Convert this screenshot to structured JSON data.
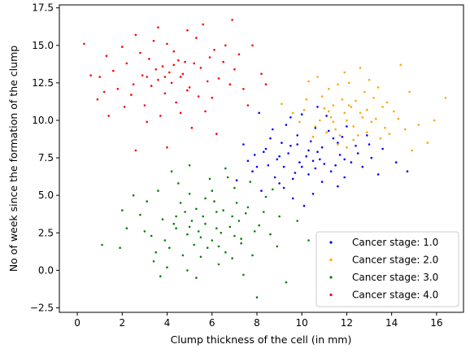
{
  "chart_data": {
    "type": "scatter",
    "title": "",
    "xlabel": "Clump thickness of the cell (in mm)",
    "ylabel": "No of week since the formation of the clump",
    "xlim": [
      -0.8,
      17.2
    ],
    "ylim": [
      -2.8,
      17.7
    ],
    "xticks": [
      0,
      2,
      4,
      6,
      8,
      10,
      12,
      14,
      16
    ],
    "yticks": [
      -2.5,
      0.0,
      2.5,
      5.0,
      7.5,
      10.0,
      12.5,
      15.0,
      17.5
    ],
    "xtick_labels": [
      "0",
      "2",
      "4",
      "6",
      "8",
      "10",
      "12",
      "14",
      "16"
    ],
    "ytick_labels": [
      "−2.5",
      "0.0",
      "2.5",
      "5.0",
      "7.5",
      "10.0",
      "12.5",
      "15.0",
      "17.5"
    ],
    "grid": false,
    "legend_position": "lower right",
    "series": [
      {
        "name": "Cancer stage: 1.0",
        "color": "#0000ff",
        "points": [
          [
            10.2,
            7.6
          ],
          [
            9.5,
            8.3
          ],
          [
            11.0,
            7.1
          ],
          [
            10.6,
            6.8
          ],
          [
            9.8,
            9.0
          ],
          [
            10.9,
            8.2
          ],
          [
            8.9,
            7.4
          ],
          [
            10.3,
            6.4
          ],
          [
            11.4,
            8.8
          ],
          [
            9.2,
            6.9
          ],
          [
            10.0,
            10.4
          ],
          [
            8.3,
            7.9
          ],
          [
            12.4,
            8.3
          ],
          [
            7.8,
            6.6
          ],
          [
            9.6,
            4.8
          ],
          [
            11.6,
            5.6
          ],
          [
            13.1,
            7.5
          ],
          [
            8.1,
            10.5
          ],
          [
            10.7,
            10.9
          ],
          [
            9.0,
            5.8
          ],
          [
            12.0,
            9.6
          ],
          [
            7.4,
            8.4
          ],
          [
            11.9,
            6.2
          ],
          [
            10.5,
            5.1
          ],
          [
            9.3,
            9.7
          ],
          [
            8.6,
            8.8
          ],
          [
            13.6,
            8.1
          ],
          [
            14.7,
            6.6
          ],
          [
            7.1,
            6.0
          ],
          [
            10.1,
            4.3
          ],
          [
            11.2,
            9.3
          ],
          [
            9.9,
            7.2
          ],
          [
            10.4,
            8.6
          ],
          [
            8.8,
            6.2
          ],
          [
            12.7,
            6.9
          ],
          [
            11.7,
            7.7
          ],
          [
            9.4,
            7.8
          ],
          [
            10.8,
            7.4
          ],
          [
            12.2,
            7.2
          ],
          [
            8.5,
            7.0
          ],
          [
            9.7,
            6.5
          ],
          [
            11.3,
            6.6
          ],
          [
            10.6,
            9.5
          ],
          [
            9.1,
            8.5
          ],
          [
            11.8,
            8.9
          ],
          [
            7.6,
            7.3
          ],
          [
            13.4,
            6.4
          ],
          [
            8.2,
            5.3
          ],
          [
            10.9,
            5.9
          ],
          [
            12.9,
            9.0
          ],
          [
            9.5,
            10.2
          ],
          [
            11.1,
            10.3
          ],
          [
            8.7,
            9.4
          ],
          [
            14.2,
            7.2
          ],
          [
            7.9,
            7.7
          ],
          [
            10.3,
            8.0
          ],
          [
            9.6,
            6.1
          ],
          [
            11.5,
            7.0
          ],
          [
            10.0,
            6.9
          ],
          [
            8.4,
            8.1
          ],
          [
            12.5,
            7.8
          ],
          [
            9.2,
            5.5
          ],
          [
            10.7,
            7.9
          ],
          [
            11.6,
            8.5
          ],
          [
            9.8,
            8.4
          ],
          [
            8.0,
            6.9
          ],
          [
            13.0,
            8.4
          ],
          [
            10.5,
            7.3
          ],
          [
            9.0,
            7.6
          ],
          [
            11.9,
            7.4
          ]
        ]
      },
      {
        "name": "Cancer stage: 2.0",
        "color": "#ffa500",
        "points": [
          [
            12.0,
            10.0
          ],
          [
            11.5,
            9.4
          ],
          [
            12.6,
            10.5
          ],
          [
            11.0,
            10.8
          ],
          [
            12.9,
            9.2
          ],
          [
            11.8,
            11.4
          ],
          [
            13.3,
            10.1
          ],
          [
            10.6,
            9.6
          ],
          [
            12.3,
            8.7
          ],
          [
            11.2,
            12.1
          ],
          [
            13.7,
            9.5
          ],
          [
            10.1,
            10.7
          ],
          [
            12.8,
            11.9
          ],
          [
            14.1,
            10.6
          ],
          [
            11.6,
            8.4
          ],
          [
            10.9,
            11.6
          ],
          [
            13.5,
            8.8
          ],
          [
            12.1,
            12.5
          ],
          [
            9.9,
            9.9
          ],
          [
            14.6,
            9.4
          ],
          [
            15.6,
            8.5
          ],
          [
            16.4,
            11.5
          ],
          [
            14.4,
            13.7
          ],
          [
            15.2,
            9.7
          ],
          [
            9.1,
            11.1
          ],
          [
            11.9,
            13.2
          ],
          [
            13.0,
            12.7
          ],
          [
            10.3,
            12.6
          ],
          [
            12.5,
            9.0
          ],
          [
            11.3,
            10.2
          ],
          [
            12.2,
            10.9
          ],
          [
            13.1,
            9.9
          ],
          [
            11.7,
            9.0
          ],
          [
            12.7,
            10.2
          ],
          [
            10.8,
            10.0
          ],
          [
            13.8,
            11.2
          ],
          [
            11.4,
            11.0
          ],
          [
            12.4,
            11.3
          ],
          [
            14.9,
            8.0
          ],
          [
            10.5,
            8.9
          ],
          [
            13.6,
            10.9
          ],
          [
            12.0,
            8.2
          ],
          [
            11.1,
            9.2
          ],
          [
            14.3,
            10.1
          ],
          [
            9.6,
            10.5
          ],
          [
            12.9,
            10.7
          ],
          [
            11.6,
            12.4
          ],
          [
            13.2,
            11.5
          ],
          [
            10.2,
            11.4
          ],
          [
            15.9,
            10.0
          ],
          [
            12.3,
            9.6
          ],
          [
            11.9,
            10.5
          ],
          [
            13.9,
            9.1
          ],
          [
            10.7,
            12.9
          ],
          [
            12.6,
            13.5
          ],
          [
            11.4,
            9.9
          ],
          [
            13.4,
            12.2
          ],
          [
            12.1,
            11.0
          ],
          [
            14.8,
            11.9
          ],
          [
            11.2,
            10.6
          ]
        ]
      },
      {
        "name": "Cancer stage: 3.0",
        "color": "#008000",
        "points": [
          [
            5.7,
            3.1
          ],
          [
            6.4,
            2.5
          ],
          [
            4.8,
            3.9
          ],
          [
            6.9,
            3.6
          ],
          [
            5.2,
            1.7
          ],
          [
            7.3,
            2.1
          ],
          [
            4.4,
            2.8
          ],
          [
            6.1,
            4.6
          ],
          [
            5.5,
            0.9
          ],
          [
            7.6,
            4.2
          ],
          [
            3.8,
            3.4
          ],
          [
            6.6,
            1.2
          ],
          [
            5.0,
            5.1
          ],
          [
            8.1,
            3.0
          ],
          [
            4.1,
            1.5
          ],
          [
            7.0,
            5.5
          ],
          [
            6.3,
            0.4
          ],
          [
            3.3,
            2.3
          ],
          [
            5.9,
            6.1
          ],
          [
            8.6,
            2.4
          ],
          [
            4.6,
            4.5
          ],
          [
            7.8,
            1.0
          ],
          [
            2.8,
            3.7
          ],
          [
            6.7,
            6.2
          ],
          [
            5.3,
            -0.5
          ],
          [
            9.0,
            3.6
          ],
          [
            3.6,
            5.3
          ],
          [
            7.4,
            -0.3
          ],
          [
            4.0,
            0.2
          ],
          [
            8.4,
            4.9
          ],
          [
            2.2,
            2.8
          ],
          [
            6.0,
            2.0
          ],
          [
            5.6,
            3.6
          ],
          [
            6.8,
            2.9
          ],
          [
            4.9,
            2.4
          ],
          [
            7.2,
            3.3
          ],
          [
            5.1,
            3.3
          ],
          [
            6.2,
            3.9
          ],
          [
            4.3,
            3.1
          ],
          [
            7.9,
            2.6
          ],
          [
            5.4,
            2.6
          ],
          [
            6.5,
            4.0
          ],
          [
            3.9,
            2.0
          ],
          [
            7.5,
            3.8
          ],
          [
            5.8,
            1.5
          ],
          [
            4.5,
            5.8
          ],
          [
            8.9,
            1.6
          ],
          [
            3.1,
            4.6
          ],
          [
            6.9,
            0.8
          ],
          [
            5.0,
            7.0
          ],
          [
            9.8,
            3.3
          ],
          [
            1.9,
            1.5
          ],
          [
            4.2,
            6.6
          ],
          [
            7.7,
            5.9
          ],
          [
            3.4,
            0.6
          ],
          [
            10.3,
            2.0
          ],
          [
            2.5,
            5.0
          ],
          [
            8.0,
            -1.8
          ],
          [
            5.7,
            4.8
          ],
          [
            6.3,
            1.6
          ],
          [
            4.7,
            1.0
          ],
          [
            7.1,
            4.5
          ],
          [
            3.0,
            2.6
          ],
          [
            8.3,
            3.9
          ],
          [
            5.3,
            4.1
          ],
          [
            6.0,
            5.3
          ],
          [
            4.4,
            3.6
          ],
          [
            7.3,
            1.8
          ],
          [
            2.0,
            4.0
          ],
          [
            9.3,
            -0.8
          ],
          [
            1.1,
            1.7
          ],
          [
            3.7,
            -0.4
          ],
          [
            6.6,
            6.8
          ],
          [
            5.5,
            2.2
          ],
          [
            4.9,
            0.0
          ],
          [
            6.2,
            2.8
          ],
          [
            5.0,
            2.9
          ],
          [
            7.0,
            2.3
          ],
          [
            3.5,
            1.2
          ],
          [
            8.7,
            5.4
          ]
        ]
      },
      {
        "name": "Cancer stage: 4.0",
        "color": "#ff0000",
        "points": [
          [
            4.1,
            13.2
          ],
          [
            3.6,
            12.7
          ],
          [
            4.8,
            13.9
          ],
          [
            3.2,
            14.1
          ],
          [
            5.0,
            12.2
          ],
          [
            4.3,
            14.6
          ],
          [
            2.9,
            13.0
          ],
          [
            5.5,
            13.5
          ],
          [
            3.9,
            11.8
          ],
          [
            4.6,
            12.9
          ],
          [
            2.5,
            12.4
          ],
          [
            5.9,
            14.2
          ],
          [
            3.4,
            15.3
          ],
          [
            6.3,
            12.8
          ],
          [
            2.2,
            13.8
          ],
          [
            4.4,
            11.2
          ],
          [
            5.3,
            15.5
          ],
          [
            1.8,
            12.1
          ],
          [
            6.0,
            11.5
          ],
          [
            3.0,
            11.0
          ],
          [
            7.0,
            13.4
          ],
          [
            1.3,
            14.3
          ],
          [
            4.9,
            16.0
          ],
          [
            2.6,
            15.7
          ],
          [
            6.6,
            15.0
          ],
          [
            3.7,
            10.3
          ],
          [
            5.7,
            10.6
          ],
          [
            1.0,
            12.9
          ],
          [
            7.4,
            12.1
          ],
          [
            2.1,
            10.9
          ],
          [
            0.3,
            15.1
          ],
          [
            0.6,
            13.0
          ],
          [
            8.2,
            13.1
          ],
          [
            8.4,
            12.4
          ],
          [
            6.9,
            16.7
          ],
          [
            7.8,
            15.0
          ],
          [
            5.1,
            9.5
          ],
          [
            3.1,
            9.9
          ],
          [
            2.6,
            8.0
          ],
          [
            4.0,
            8.2
          ],
          [
            6.2,
            9.1
          ],
          [
            0.9,
            11.4
          ],
          [
            1.4,
            10.3
          ],
          [
            4.2,
            12.5
          ],
          [
            3.8,
            13.6
          ],
          [
            4.7,
            13.1
          ],
          [
            3.3,
            12.3
          ],
          [
            5.2,
            13.8
          ],
          [
            4.5,
            14.0
          ],
          [
            2.8,
            14.5
          ],
          [
            5.8,
            12.6
          ],
          [
            3.5,
            13.4
          ],
          [
            4.0,
            15.1
          ],
          [
            6.5,
            13.9
          ],
          [
            2.4,
            11.7
          ],
          [
            5.4,
            11.6
          ],
          [
            3.1,
            12.9
          ],
          [
            4.9,
            12.0
          ],
          [
            6.1,
            14.7
          ],
          [
            1.6,
            13.3
          ],
          [
            7.2,
            14.4
          ],
          [
            2.0,
            14.9
          ],
          [
            4.6,
            10.5
          ],
          [
            5.6,
            16.4
          ],
          [
            3.6,
            16.2
          ],
          [
            7.6,
            11.0
          ],
          [
            1.2,
            11.9
          ],
          [
            6.8,
            12.4
          ],
          [
            4.3,
            13.7
          ],
          [
            3.9,
            12.9
          ]
        ]
      }
    ]
  }
}
